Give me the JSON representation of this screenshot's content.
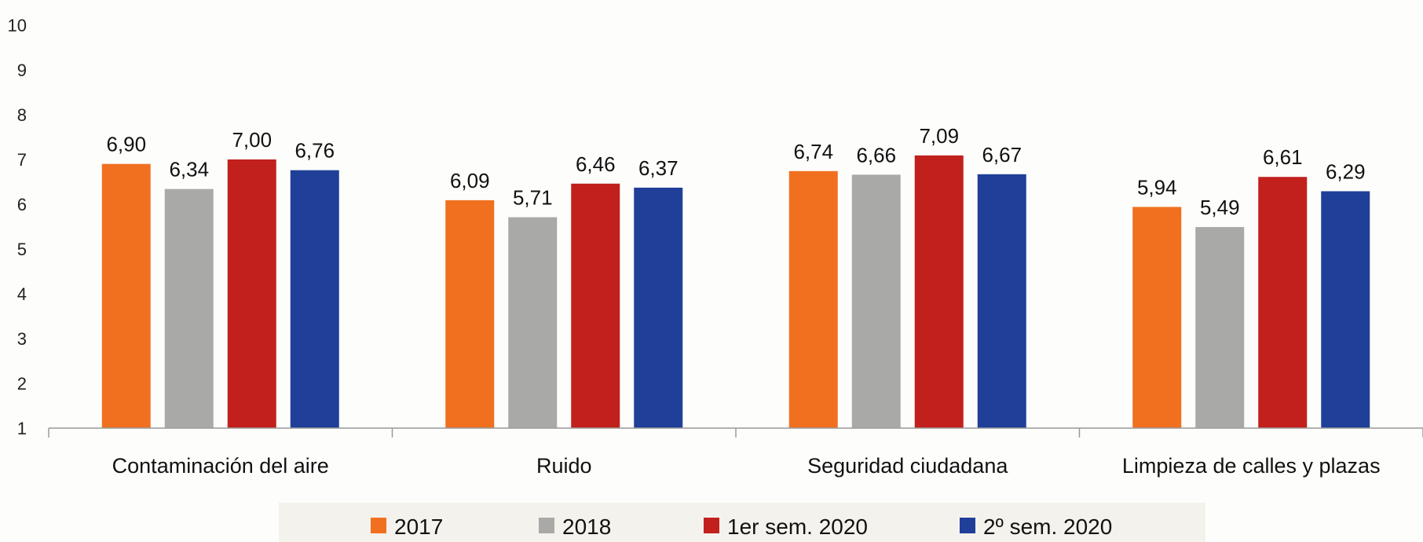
{
  "chart_data": {
    "type": "bar",
    "title": "",
    "xlabel": "",
    "ylabel": "",
    "ylim": [
      1,
      10
    ],
    "yticks": [
      1,
      2,
      3,
      4,
      5,
      6,
      7,
      8,
      9,
      10
    ],
    "grid": false,
    "legend_position": "bottom",
    "categories": [
      "Contaminación del aire",
      "Ruido",
      "Seguridad ciudadana",
      "Limpieza de calles y plazas"
    ],
    "series": [
      {
        "name": "2017",
        "color": "#f07020",
        "values": [
          6.9,
          6.09,
          6.74,
          5.94
        ],
        "labels": [
          "6,90",
          "6,09",
          "6,74",
          "5,94"
        ]
      },
      {
        "name": "2018",
        "color": "#a9a9a7",
        "values": [
          6.34,
          5.71,
          6.66,
          5.49
        ],
        "labels": [
          "6,34",
          "5,71",
          "6,66",
          "5,49"
        ]
      },
      {
        "name": "1er sem. 2020",
        "color": "#c1201c",
        "values": [
          7.0,
          6.46,
          7.09,
          6.61
        ],
        "labels": [
          "7,00",
          "6,46",
          "7,09",
          "6,61"
        ]
      },
      {
        "name": "2º sem. 2020",
        "color": "#1f3f99",
        "values": [
          6.76,
          6.37,
          6.67,
          6.29
        ],
        "labels": [
          "6,76",
          "6,37",
          "6,67",
          "6,29"
        ]
      }
    ]
  }
}
